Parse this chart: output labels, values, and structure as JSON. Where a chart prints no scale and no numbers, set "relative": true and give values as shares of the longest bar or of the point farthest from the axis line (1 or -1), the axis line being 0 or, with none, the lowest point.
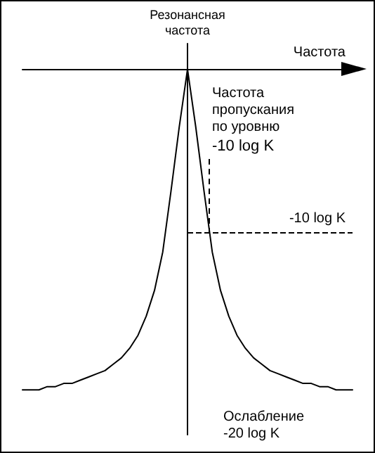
{
  "chart_data": {
    "type": "line",
    "relative": true,
    "xlabel": "Частота",
    "ylabel": "Резонансная\nчастота",
    "categories": [
      null,
      null,
      null,
      null,
      null,
      null,
      null,
      null,
      null,
      null,
      null,
      null,
      null,
      null,
      null,
      null,
      null,
      null,
      null,
      null,
      null,
      null,
      null,
      null,
      null,
      null,
      null,
      null,
      null,
      null,
      null,
      null,
      null,
      null,
      null,
      null,
      null,
      null,
      null,
      null,
      null
    ],
    "series": [
      {
        "color": "#000000",
        "values": [
          -1,
          -1,
          -1,
          -0.99,
          -0.99,
          -0.98,
          -0.98,
          -0.97,
          -0.96,
          -0.95,
          -0.94,
          -0.92,
          -0.9,
          -0.87,
          -0.83,
          -0.77,
          -0.69,
          -0.57,
          -0.38,
          -0.18,
          0,
          -0.18,
          -0.38,
          -0.57,
          -0.69,
          -0.77,
          -0.83,
          -0.87,
          -0.9,
          -0.92,
          -0.94,
          -0.95,
          -0.96,
          -0.97,
          -0.98,
          -0.98,
          -0.99,
          -0.99,
          -1,
          -1,
          -1
        ]
      }
    ],
    "ref_lines": [
      {
        "axis": "y",
        "value": -0.51,
        "label": "-10 log K",
        "line_style": "dashed"
      }
    ],
    "annotations": [
      "Частота\nпропускания\nпо уровню",
      "-10 log K",
      "Ослабление\n-20 log K"
    ],
    "line_style": "solid",
    "grid": false
  }
}
